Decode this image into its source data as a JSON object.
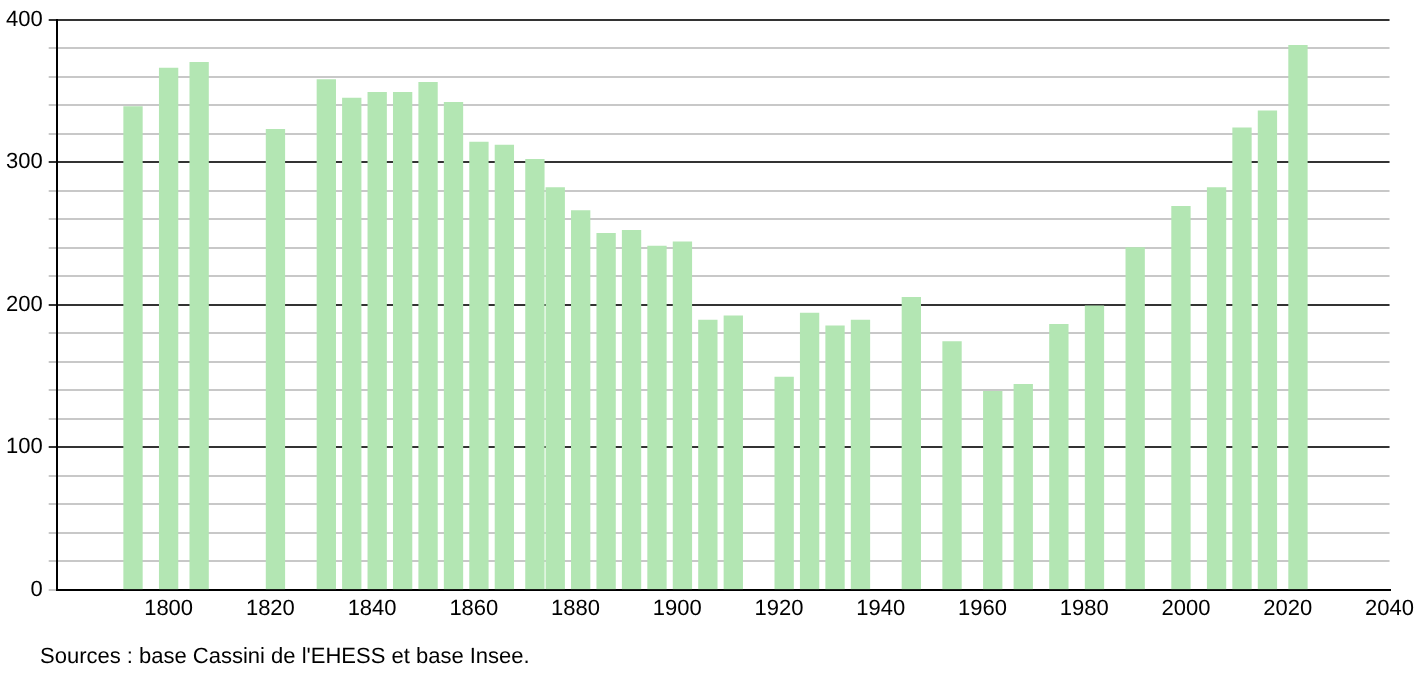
{
  "chart_data": {
    "type": "bar",
    "x": [
      1793,
      1800,
      1806,
      1821,
      1831,
      1836,
      1841,
      1846,
      1851,
      1856,
      1861,
      1866,
      1872,
      1876,
      1881,
      1886,
      1891,
      1896,
      1901,
      1906,
      1911,
      1921,
      1926,
      1931,
      1936,
      1946,
      1954,
      1962,
      1968,
      1975,
      1982,
      1990,
      1999,
      2006,
      2011,
      2016,
      2022
    ],
    "values": [
      339,
      366,
      370,
      323,
      358,
      345,
      349,
      349,
      356,
      342,
      314,
      312,
      302,
      282,
      266,
      250,
      252,
      241,
      244,
      189,
      192,
      149,
      194,
      185,
      189,
      205,
      174,
      139,
      144,
      186,
      199,
      240,
      269,
      282,
      324,
      336,
      382
    ],
    "color": "#b3e6b3",
    "xlim": [
      1778,
      2040
    ],
    "xticks": [
      1800,
      1820,
      1840,
      1860,
      1880,
      1900,
      1920,
      1940,
      1960,
      1980,
      2000,
      2020,
      2040
    ],
    "ylim": [
      0,
      400
    ],
    "yticks": [
      0,
      {
        "value": 20,
        "label": null
      },
      {
        "value": 40,
        "label": null
      },
      {
        "value": 60,
        "label": null
      },
      {
        "value": 80,
        "label": null
      },
      100,
      {
        "value": 120,
        "label": null
      },
      {
        "value": 140,
        "label": null
      },
      {
        "value": 160,
        "label": null
      },
      {
        "value": 180,
        "label": null
      },
      200,
      {
        "value": 220,
        "label": null
      },
      {
        "value": 240,
        "label": null
      },
      {
        "value": 260,
        "label": null
      },
      {
        "value": 280,
        "label": null
      },
      300,
      {
        "value": 320,
        "label": null
      },
      {
        "value": 340,
        "label": null
      },
      {
        "value": 360,
        "label": null
      },
      {
        "value": 380,
        "label": null
      },
      400
    ],
    "grid": "y",
    "legend": false,
    "annotations": [
      "Sources : base Cassini de l'EHESS et base Insee."
    ]
  }
}
